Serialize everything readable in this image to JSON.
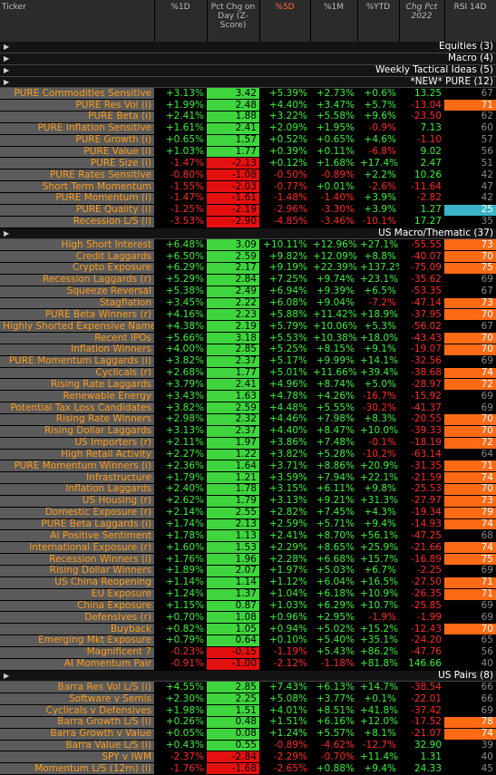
{
  "header": {
    "columns": [
      "Ticker",
      "%1D",
      "Pct Chg on Day (Z-Score)",
      "%5D",
      "%1M",
      "%YTD",
      "Chg Pct 2022",
      "RSI 14D"
    ]
  },
  "sections": [
    {
      "title": "Equities (3)",
      "rows": []
    },
    {
      "title": "Macro (4)",
      "rows": []
    },
    {
      "title": "Weekly Tactical Ideas (5)",
      "rows": []
    },
    {
      "title": "*NEW* PURE (12)",
      "rows": [
        [
          "PURE Commodities Sensitive",
          "+3.13%",
          "3.42",
          "+5.39%",
          "+2.73%",
          "+0.6%",
          "13.25",
          "67"
        ],
        [
          "PURE Res Vol (i)",
          "+1.99%",
          "2.48",
          "+4.40%",
          "+3.47%",
          "+5.7%",
          "-13.04",
          "71"
        ],
        [
          "PURE Beta (i)",
          "+2.41%",
          "1.88",
          "+3.22%",
          "+5.58%",
          "+9.6%",
          "-23.50",
          "62"
        ],
        [
          "PURE Inflation Sensitive",
          "+1.61%",
          "2.41",
          "+2.09%",
          "+1.95%",
          "-0.9%",
          "7.13",
          "60"
        ],
        [
          "PURE Growth (i)",
          "+0.65%",
          "1.57",
          "+0.52%",
          "+0.65%",
          "+4.6%",
          "-1.10",
          "57"
        ],
        [
          "PURE Value (i)",
          "+1.03%",
          "1.77",
          "+0.39%",
          "+0.11%",
          "-6.8%",
          "9.02",
          "56"
        ],
        [
          "PURE Size (i)",
          "-1.47%",
          "-2.13",
          "+0.12%",
          "+1.68%",
          "+17.4%",
          "2.47",
          "51"
        ],
        [
          "PURE Rates Sensitive",
          "-0.80%",
          "-1.08",
          "-0.50%",
          "-0.89%",
          "+2.2%",
          "10.26",
          "42"
        ],
        [
          "Short Term Momentum",
          "-1.55%",
          "-2.03",
          "-0.77%",
          "+0.01%",
          "-2.6%",
          "-11.64",
          "47"
        ],
        [
          "PURE Momentum (i)",
          "-1.47%",
          "-1.61",
          "-1.48%",
          "-1.40%",
          "+3.9%",
          "-2.82",
          "42"
        ],
        [
          "PURE Quality (i)",
          "-1.25%",
          "-2.19",
          "-2.96%",
          "-3.30%",
          "+3.9%",
          "1.27",
          "25"
        ],
        [
          "Recession L/S (i)",
          "-3.53%",
          "-2.90",
          "-4.85%",
          "-3.46%",
          "-10.1%",
          "17.27",
          "35"
        ]
      ]
    },
    {
      "title": "US Macro/Thematic (37)",
      "rows": [
        [
          "High Short Interest",
          "+6.48%",
          "3.09",
          "+10.11%",
          "+12.96%",
          "+27.1%",
          "-55.55",
          "73"
        ],
        [
          "Credit Laggards",
          "+6.50%",
          "2.59",
          "+9.82%",
          "+12.09%",
          "+8.8%",
          "-40.07",
          "70"
        ],
        [
          "Crypto Exposure",
          "+6.29%",
          "2.17",
          "+9.19%",
          "+22.39%",
          "+137.2%",
          "-75.09",
          "75"
        ],
        [
          "Recession Laggards (r)",
          "+5.29%",
          "2.84",
          "+7.25%",
          "+9.74%",
          "+23.1%",
          "-35.62",
          "69"
        ],
        [
          "Squeeze Reversal",
          "+5.38%",
          "2.49",
          "+6.94%",
          "+9.39%",
          "+6.5%",
          "-53.35",
          "67"
        ],
        [
          "Stagflation",
          "+3.45%",
          "2.22",
          "+6.08%",
          "+9.04%",
          "-7.2%",
          "-47.14",
          "73"
        ],
        [
          "PURE Beta Winners (r)",
          "+4.16%",
          "2.23",
          "+5.88%",
          "+11.42%",
          "+18.9%",
          "-37.95",
          "70"
        ],
        [
          "Highly Shorted Expensive Name",
          "+4.38%",
          "2.19",
          "+5.79%",
          "+10.06%",
          "+5.3%",
          "-56.02",
          "67"
        ],
        [
          "Recent IPOs",
          "+5.66%",
          "3.18",
          "+5.53%",
          "+10.38%",
          "+18.0%",
          "-43.43",
          "70"
        ],
        [
          "Inflation Winners",
          "+4.00%",
          "2.85",
          "+5.25%",
          "+8.15%",
          "+9.1%",
          "-19.07",
          "70"
        ],
        [
          "PURE Momentum Laggards (i)",
          "+3.82%",
          "2.37",
          "+5.17%",
          "+9.99%",
          "+14.1%",
          "-32.56",
          "69"
        ],
        [
          "Cyclicals (r)",
          "+2.68%",
          "1.77",
          "+5.01%",
          "+11.66%",
          "+39.4%",
          "-38.68",
          "74"
        ],
        [
          "Rising Rate Laggards",
          "+3.79%",
          "2.41",
          "+4.96%",
          "+8.74%",
          "+5.0%",
          "-28.97",
          "72"
        ],
        [
          "Renewable Energy",
          "+3.43%",
          "1.63",
          "+4.78%",
          "+4.26%",
          "-16.7%",
          "-15.92",
          "69"
        ],
        [
          "Potential Tax Loss Candidates",
          "+3.82%",
          "2.59",
          "+4.48%",
          "+5.55%",
          "-30.2%",
          "-41.37",
          "69"
        ],
        [
          "Rising Rate Winners",
          "+2.98%",
          "2.32",
          "+4.46%",
          "+7.98%",
          "+8.3%",
          "-20.55",
          "70"
        ],
        [
          "Rising Dollar Laggards",
          "+3.13%",
          "2.37",
          "+4.40%",
          "+8.47%",
          "+10.0%",
          "-39.33",
          "70"
        ],
        [
          "US Importers (r)",
          "+2.11%",
          "1.97",
          "+3.86%",
          "+7.48%",
          "-0.1%",
          "-18.19",
          "72"
        ],
        [
          "High Retail Activity",
          "+2.27%",
          "1.22",
          "+3.82%",
          "+5.28%",
          "-10.2%",
          "-63.14",
          "64"
        ],
        [
          "PURE Momentum Winners (i)",
          "+2.36%",
          "1.64",
          "+3.71%",
          "+8.86%",
          "+20.9%",
          "-31.35",
          "71"
        ],
        [
          "Infrastructure",
          "+1.79%",
          "1.21",
          "+3.59%",
          "+7.94%",
          "+22.1%",
          "-21.59",
          "74"
        ],
        [
          "Inflation Laggards",
          "+2.40%",
          "1.78",
          "+3.15%",
          "+6.11%",
          "+9.8%",
          "-25.53",
          "70"
        ],
        [
          "US Housing (r)",
          "+2.62%",
          "1.79",
          "+3.13%",
          "+9.21%",
          "+31.3%",
          "-27.97",
          "73"
        ],
        [
          "Domestic Exposure (r)",
          "+2.14%",
          "2.55",
          "+2.82%",
          "+7.45%",
          "+4.3%",
          "-19.34",
          "79"
        ],
        [
          "PURE Beta Laggards (i)",
          "+1.74%",
          "2.13",
          "+2.59%",
          "+5.71%",
          "+9.4%",
          "-14.93",
          "74"
        ],
        [
          "AI Positive Sentiment",
          "+1.78%",
          "1.13",
          "+2.41%",
          "+8.70%",
          "+56.1%",
          "-47.25",
          "68"
        ],
        [
          "International Exposure (r)",
          "+1.60%",
          "1.53",
          "+2.29%",
          "+8.65%",
          "+25.9%",
          "-21.66",
          "74"
        ],
        [
          "Recession Winners (i)",
          "+1.76%",
          "1.96",
          "+2.28%",
          "+6.68%",
          "+15.7%",
          "-16.89",
          "75"
        ],
        [
          "Rising Dollar Winners",
          "+1.89%",
          "2.07",
          "+1.97%",
          "+5.03%",
          "+6.7%",
          "-2.25",
          "69"
        ],
        [
          "US China Reopening",
          "+1.14%",
          "1.14",
          "+1.12%",
          "+6.04%",
          "+16.5%",
          "-27.50",
          "71"
        ],
        [
          "EU Exposure",
          "+1.24%",
          "1.37",
          "+1.04%",
          "+6.18%",
          "+10.9%",
          "-26.35",
          "71"
        ],
        [
          "China Exposure",
          "+1.15%",
          "0.87",
          "+1.03%",
          "+6.29%",
          "+10.7%",
          "-25.85",
          "69"
        ],
        [
          "Defensives (r)",
          "+0.70%",
          "1.08",
          "+0.96%",
          "+2.95%",
          "-1.9%",
          "-1.99",
          "69"
        ],
        [
          "Buyback",
          "+0.82%",
          "1.05",
          "+0.94%",
          "+5.02%",
          "+15.2%",
          "-12.43",
          "70"
        ],
        [
          "Emerging Mkt Exposure",
          "+0.79%",
          "0.64",
          "+0.10%",
          "+5.40%",
          "+35.1%",
          "-24.20",
          "65"
        ],
        [
          "Magnificent 7",
          "-0.23%",
          "-0.15",
          "-1.19%",
          "+5.43%",
          "+86.2%",
          "-47.76",
          "56"
        ],
        [
          "AI Momentum Pair",
          "-0.91%",
          "-1.00",
          "-2.12%",
          "-1.18%",
          "+81.8%",
          "146.66",
          "40"
        ]
      ]
    },
    {
      "title": "US Pairs (8)",
      "rows": [
        [
          "Barra Res Vol L/S (i)",
          "+4.55%",
          "2.85",
          "+7.43%",
          "+6.13%",
          "+14.7%",
          "-38.54",
          "66"
        ],
        [
          "Software v Semis",
          "+2.30%",
          "2.25",
          "+5.08%",
          "+3.77%",
          "+0.1%",
          "-22.01",
          "66"
        ],
        [
          "Cyclicals v Defensives",
          "+1.98%",
          "1.51",
          "+4.01%",
          "+8.51%",
          "+41.8%",
          "-37.42",
          "69"
        ],
        [
          "Barra Growth L/S (i)",
          "+0.26%",
          "0.48",
          "+1.51%",
          "+6.16%",
          "+12.0%",
          "-17.52",
          "78"
        ],
        [
          "Barra Growth v Value",
          "+0.05%",
          "0.08",
          "+1.24%",
          "+5.57%",
          "+8.1%",
          "-21.07",
          "74"
        ],
        [
          "Barra Value L/S (i)",
          "+0.43%",
          "0.55",
          "-0.89%",
          "-4.62%",
          "-12.7%",
          "32.90",
          "39"
        ],
        [
          "SPY v IWM",
          "-2.37%",
          "-2.84",
          "-2.29%",
          "-0.70%",
          "+11.4%",
          "1.31",
          "40"
        ],
        [
          "Momentum L/S (12m) (i)",
          "-1.76%",
          "-1.68",
          "-2.65%",
          "+0.88%",
          "+9.4%",
          "24.33",
          "45"
        ]
      ]
    }
  ]
}
